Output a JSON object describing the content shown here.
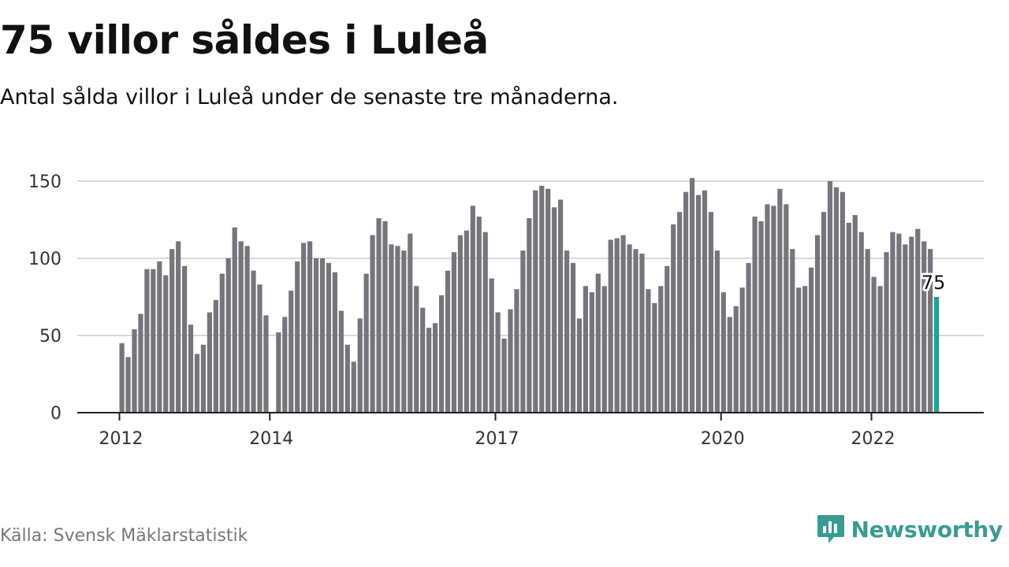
{
  "title": "75 villor såldes i Luleå",
  "subtitle": "Antal sålda villor i Luleå under de senaste tre månaderna.",
  "source": "Källa: Svensk Mäklarstatistik",
  "brand": {
    "name": "Newsworthy",
    "icon": "bar-chart-speech-bubble-icon"
  },
  "colors": {
    "bar": "#75757c",
    "highlight": "#1aa39a",
    "grid": "#d9d9d9",
    "axis": "#222222",
    "brand": "#3a9b94"
  },
  "chart_data": {
    "type": "bar",
    "start": "2012-01",
    "frequency": "monthly",
    "values": [
      45,
      36,
      54,
      64,
      93,
      93,
      98,
      89,
      106,
      111,
      95,
      57,
      38,
      44,
      65,
      73,
      90,
      100,
      120,
      111,
      108,
      92,
      83,
      63,
      null,
      52,
      62,
      79,
      98,
      110,
      111,
      100,
      100,
      97,
      91,
      66,
      44,
      33,
      61,
      90,
      115,
      126,
      124,
      109,
      108,
      105,
      116,
      82,
      68,
      55,
      58,
      76,
      92,
      104,
      115,
      118,
      134,
      127,
      117,
      87,
      65,
      48,
      67,
      80,
      105,
      126,
      144,
      147,
      145,
      133,
      138,
      105,
      97,
      61,
      82,
      78,
      90,
      82,
      112,
      113,
      115,
      109,
      106,
      103,
      80,
      71,
      82,
      95,
      122,
      130,
      143,
      152,
      141,
      144,
      130,
      105,
      78,
      62,
      69,
      81,
      97,
      127,
      124,
      135,
      134,
      145,
      135,
      106,
      81,
      82,
      94,
      115,
      130,
      150,
      146,
      143,
      123,
      128,
      117,
      106,
      88,
      82,
      104,
      117,
      116,
      109,
      114,
      119,
      111,
      106,
      75
    ],
    "highlight_label": "75",
    "ylim": [
      0,
      150
    ],
    "yticks": [
      0,
      50,
      100,
      150
    ],
    "xticks": [
      {
        "label": "2012",
        "index": 0
      },
      {
        "label": "2014",
        "index": 24
      },
      {
        "label": "2017",
        "index": 60
      },
      {
        "label": "2020",
        "index": 96
      },
      {
        "label": "2022",
        "index": 120
      }
    ],
    "grid": true,
    "xlabel": "",
    "ylabel": ""
  }
}
